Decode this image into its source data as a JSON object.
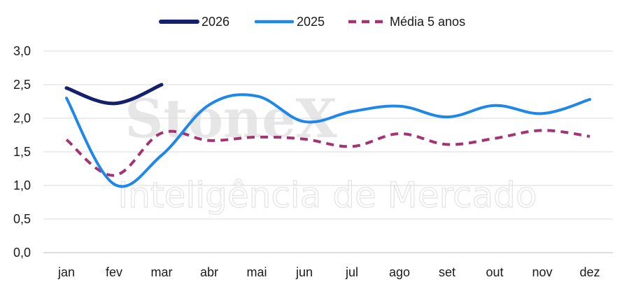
{
  "watermark": {
    "brand": "StoneX",
    "subtitle": "Inteligência de Mercado"
  },
  "chart_data": {
    "type": "line",
    "categories": [
      "jan",
      "fev",
      "mar",
      "abr",
      "mai",
      "jun",
      "jul",
      "ago",
      "set",
      "out",
      "nov",
      "dez"
    ],
    "ylim": [
      0,
      3.0
    ],
    "yticks": [
      "0,0",
      "0,5",
      "1,0",
      "1,5",
      "2,0",
      "2,5",
      "3,0"
    ],
    "grid": true,
    "legend_position": "top-center",
    "series": [
      {
        "name": "2026",
        "color": "#14206b",
        "style": "solid",
        "values": [
          2.45,
          2.22,
          2.5,
          null,
          null,
          null,
          null,
          null,
          null,
          null,
          null,
          null
        ]
      },
      {
        "name": "2025",
        "color": "#1f87e8",
        "style": "solid",
        "values": [
          2.3,
          1.02,
          1.45,
          2.2,
          2.33,
          1.95,
          2.1,
          2.18,
          2.02,
          2.19,
          2.07,
          2.28
        ]
      },
      {
        "name": "Média 5 anos",
        "color": "#a33474",
        "style": "dashed",
        "values": [
          1.68,
          1.15,
          1.78,
          1.67,
          1.72,
          1.69,
          1.58,
          1.77,
          1.61,
          1.7,
          1.82,
          1.73
        ]
      }
    ]
  }
}
